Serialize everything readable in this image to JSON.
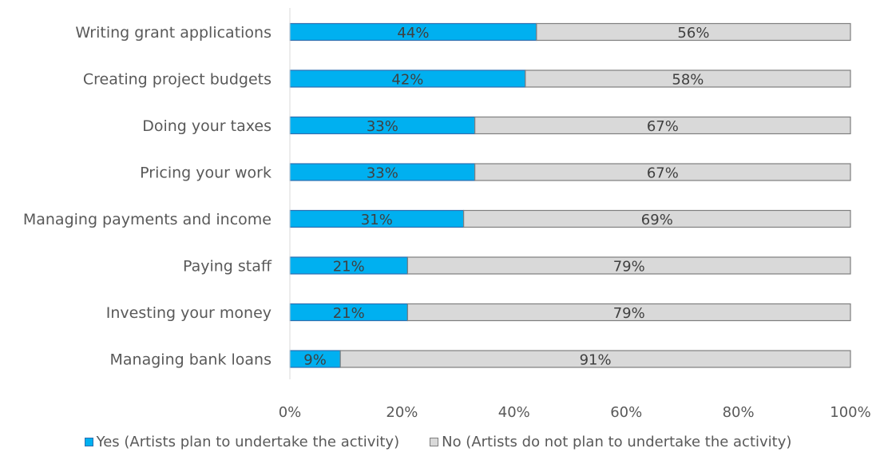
{
  "chart_data": {
    "type": "bar",
    "orientation": "horizontal",
    "stacked": true,
    "categories": [
      "Writing grant applications",
      "Creating project budgets",
      "Doing your taxes",
      "Pricing your work",
      "Managing payments and income",
      "Paying staff",
      "Investing your money",
      "Managing bank loans"
    ],
    "series": [
      {
        "name": "Yes (Artists plan to undertake the activity)",
        "values": [
          44,
          42,
          33,
          33,
          31,
          21,
          21,
          9
        ],
        "labels": [
          "44%",
          "42%",
          "33%",
          "33%",
          "31%",
          "21%",
          "21%",
          "9%"
        ],
        "color": "#00b0f0",
        "border": "#2f6fb0"
      },
      {
        "name": "No (Artists do not plan to undertake the activity)",
        "values": [
          56,
          58,
          67,
          67,
          69,
          79,
          79,
          91
        ],
        "labels": [
          "56%",
          "58%",
          "67%",
          "67%",
          "69%",
          "79%",
          "79%",
          "91%"
        ],
        "color": "#d9d9d9",
        "border": "#7f7f7f"
      }
    ],
    "xlim": [
      0,
      100
    ],
    "x_ticks": [
      "0%",
      "20%",
      "40%",
      "60%",
      "80%",
      "100%"
    ],
    "grid": false,
    "legend_position": "bottom"
  }
}
